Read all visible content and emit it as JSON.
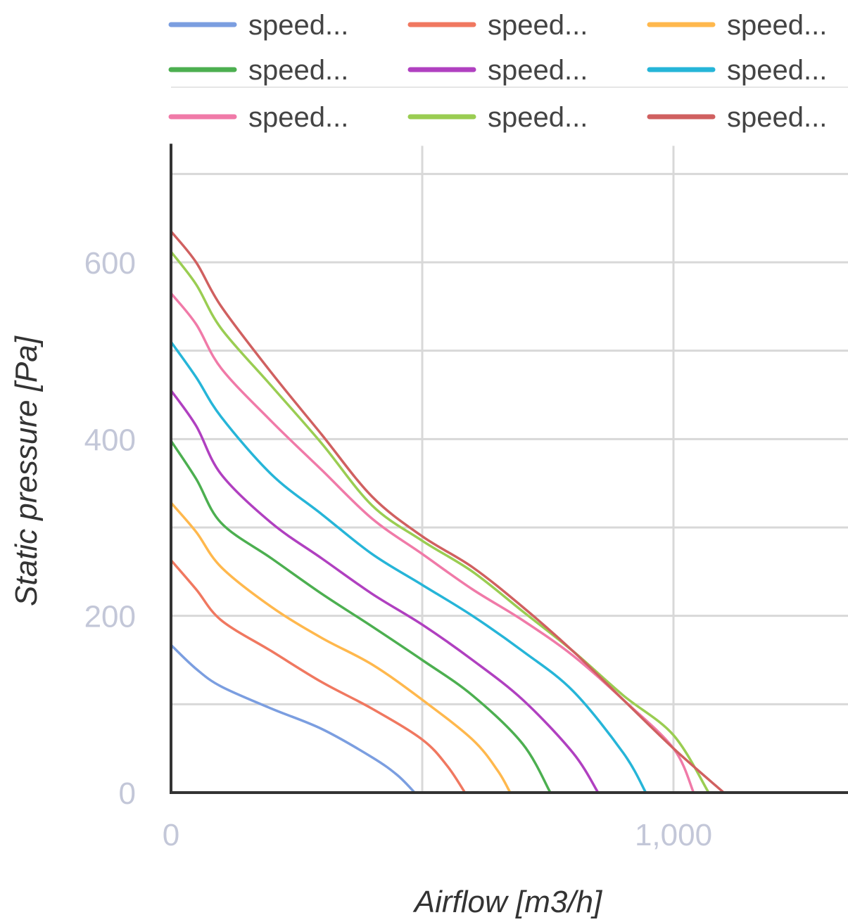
{
  "chart_data": {
    "type": "line",
    "xlabel": "Airflow [m3/h]",
    "ylabel": "Static pressure [Pa]",
    "xlim": [
      0,
      1350
    ],
    "ylim": [
      0,
      700
    ],
    "x_ticks": [
      {
        "value": 0,
        "label": "0"
      },
      {
        "value": 1000,
        "label": "1,000"
      }
    ],
    "y_ticks": [
      {
        "value": 0,
        "label": "0"
      },
      {
        "value": 200,
        "label": "200"
      },
      {
        "value": 400,
        "label": "400"
      },
      {
        "value": 600,
        "label": "600"
      }
    ],
    "x_gridlines": [
      0,
      500,
      1000
    ],
    "y_gridlines": [
      0,
      100,
      200,
      300,
      400,
      500,
      600,
      700
    ],
    "grid": true,
    "legend": "top",
    "series": [
      {
        "name": "speed...",
        "color": "#7b9ee0",
        "points": [
          [
            0,
            167
          ],
          [
            50,
            140
          ],
          [
            100,
            120
          ],
          [
            200,
            95
          ],
          [
            300,
            72
          ],
          [
            400,
            40
          ],
          [
            450,
            20
          ],
          [
            485,
            0
          ]
        ]
      },
      {
        "name": "speed...",
        "color": "#f07860",
        "points": [
          [
            0,
            263
          ],
          [
            50,
            230
          ],
          [
            100,
            195
          ],
          [
            200,
            160
          ],
          [
            300,
            125
          ],
          [
            400,
            95
          ],
          [
            500,
            60
          ],
          [
            550,
            30
          ],
          [
            585,
            0
          ]
        ]
      },
      {
        "name": "speed...",
        "color": "#ffb84d",
        "points": [
          [
            0,
            328
          ],
          [
            50,
            295
          ],
          [
            100,
            255
          ],
          [
            200,
            210
          ],
          [
            300,
            175
          ],
          [
            400,
            145
          ],
          [
            500,
            105
          ],
          [
            600,
            60
          ],
          [
            650,
            25
          ],
          [
            675,
            0
          ]
        ]
      },
      {
        "name": "speed...",
        "color": "#4caf50",
        "points": [
          [
            0,
            398
          ],
          [
            50,
            355
          ],
          [
            100,
            305
          ],
          [
            200,
            265
          ],
          [
            300,
            225
          ],
          [
            400,
            188
          ],
          [
            500,
            150
          ],
          [
            600,
            110
          ],
          [
            700,
            55
          ],
          [
            755,
            0
          ]
        ]
      },
      {
        "name": "speed...",
        "color": "#b040c0",
        "points": [
          [
            0,
            455
          ],
          [
            50,
            415
          ],
          [
            100,
            360
          ],
          [
            200,
            305
          ],
          [
            300,
            265
          ],
          [
            400,
            225
          ],
          [
            500,
            190
          ],
          [
            600,
            150
          ],
          [
            700,
            105
          ],
          [
            800,
            45
          ],
          [
            850,
            0
          ]
        ]
      },
      {
        "name": "speed...",
        "color": "#26b5d8",
        "points": [
          [
            0,
            510
          ],
          [
            50,
            470
          ],
          [
            100,
            425
          ],
          [
            200,
            360
          ],
          [
            300,
            315
          ],
          [
            400,
            270
          ],
          [
            500,
            235
          ],
          [
            600,
            200
          ],
          [
            700,
            160
          ],
          [
            800,
            115
          ],
          [
            900,
            45
          ],
          [
            945,
            0
          ]
        ]
      },
      {
        "name": "speed...",
        "color": "#f07aa8",
        "points": [
          [
            0,
            565
          ],
          [
            50,
            530
          ],
          [
            100,
            480
          ],
          [
            200,
            420
          ],
          [
            300,
            365
          ],
          [
            400,
            310
          ],
          [
            500,
            270
          ],
          [
            600,
            230
          ],
          [
            700,
            195
          ],
          [
            800,
            155
          ],
          [
            900,
            105
          ],
          [
            1000,
            50
          ],
          [
            1040,
            0
          ]
        ]
      },
      {
        "name": "speed...",
        "color": "#9acd52",
        "points": [
          [
            0,
            612
          ],
          [
            50,
            575
          ],
          [
            100,
            525
          ],
          [
            200,
            460
          ],
          [
            300,
            395
          ],
          [
            400,
            325
          ],
          [
            500,
            285
          ],
          [
            600,
            250
          ],
          [
            700,
            205
          ],
          [
            800,
            160
          ],
          [
            900,
            110
          ],
          [
            1000,
            65
          ],
          [
            1070,
            0
          ]
        ]
      },
      {
        "name": "speed...",
        "color": "#d06060",
        "points": [
          [
            0,
            635
          ],
          [
            50,
            600
          ],
          [
            100,
            550
          ],
          [
            200,
            475
          ],
          [
            300,
            405
          ],
          [
            400,
            335
          ],
          [
            500,
            290
          ],
          [
            600,
            255
          ],
          [
            700,
            210
          ],
          [
            800,
            160
          ],
          [
            900,
            105
          ],
          [
            1000,
            50
          ],
          [
            1100,
            0
          ]
        ]
      }
    ]
  }
}
